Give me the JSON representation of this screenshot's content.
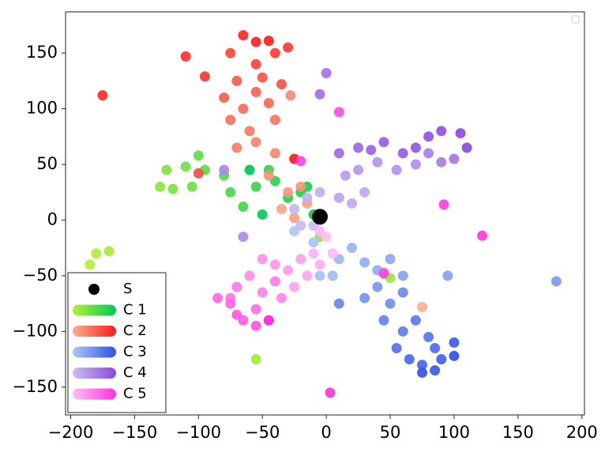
{
  "chart_data": {
    "type": "scatter",
    "xlim": [
      -204,
      202
    ],
    "ylim": [
      -175,
      187
    ],
    "xticks": [
      {
        "value": -200,
        "label": "−200"
      },
      {
        "value": -150,
        "label": "−150"
      },
      {
        "value": -100,
        "label": "−100"
      },
      {
        "value": -50,
        "label": "−50"
      },
      0,
      50,
      100,
      150,
      200
    ],
    "yticks": [
      {
        "value": -150,
        "label": "−150"
      },
      {
        "value": -100,
        "label": "−100"
      },
      {
        "value": -50,
        "label": "−50"
      },
      0,
      50,
      100,
      150
    ],
    "grid": false,
    "legend": "lower left",
    "series": [
      {
        "name": "S",
        "color": "#000000",
        "x": [
          -5
        ],
        "y": [
          3
        ]
      },
      {
        "name": "C 1",
        "colors": [
          "#b5f03a",
          "#00c853"
        ],
        "x": [
          -185,
          -180,
          -170,
          -55,
          50,
          -5,
          -130,
          -125,
          -120,
          -110,
          -105,
          -100,
          -95,
          -80,
          -75,
          -65,
          -55,
          -45,
          -40,
          -30,
          -20,
          -15,
          -10,
          -50,
          -60
        ],
        "y": [
          -40,
          -30,
          -28,
          -125,
          -52,
          -15,
          30,
          45,
          28,
          48,
          30,
          58,
          45,
          40,
          25,
          12,
          30,
          45,
          35,
          20,
          25,
          30,
          5,
          5,
          45
        ]
      },
      {
        "name": "C 2",
        "colors": [
          "#f7b08f",
          "#ff1a1a"
        ],
        "x": [
          75,
          45,
          -35,
          -15,
          -25,
          -30,
          -20,
          -45,
          -28,
          -40,
          -55,
          -70,
          -60,
          -40,
          -75,
          -65,
          -45,
          -55,
          -80,
          -70,
          -50,
          -35,
          -100,
          -75,
          -55,
          -40,
          -30,
          -95,
          -110,
          -175,
          -65,
          -55,
          -45,
          -25
        ],
        "y": [
          -78,
          -47,
          10,
          15,
          2,
          25,
          30,
          40,
          112,
          60,
          70,
          65,
          80,
          90,
          90,
          100,
          105,
          115,
          110,
          125,
          128,
          122,
          42,
          150,
          140,
          150,
          155,
          129,
          147,
          112,
          166,
          160,
          161,
          55
        ]
      },
      {
        "name": "C 3",
        "colors": [
          "#aec8f5",
          "#3050e8"
        ],
        "x": [
          -25,
          -10,
          -5,
          5,
          10,
          20,
          30,
          40,
          50,
          60,
          95,
          180,
          40,
          30,
          50,
          60,
          10,
          45,
          60,
          70,
          80,
          55,
          85,
          65,
          75,
          90,
          100,
          85,
          75,
          100
        ],
        "y": [
          -10,
          -20,
          -50,
          -50,
          -35,
          -25,
          -38,
          -45,
          -35,
          -50,
          -50,
          -55,
          -60,
          -70,
          -75,
          -65,
          -75,
          -90,
          -100,
          -90,
          -105,
          -115,
          -115,
          -125,
          -130,
          -125,
          -110,
          -135,
          -137,
          -122
        ]
      },
      {
        "name": "C 4",
        "colors": [
          "#cdbdf2",
          "#8a48e0"
        ],
        "x": [
          -10,
          -20,
          -25,
          -15,
          -5,
          20,
          30,
          10,
          15,
          25,
          40,
          55,
          70,
          -65,
          -80,
          80,
          90,
          100,
          0,
          -5,
          10,
          25,
          35,
          45,
          60,
          70,
          80,
          90,
          105,
          110
        ],
        "y": [
          -5,
          -5,
          10,
          20,
          25,
          15,
          25,
          20,
          40,
          45,
          52,
          45,
          50,
          -15,
          45,
          60,
          52,
          55,
          132,
          113,
          60,
          65,
          63,
          70,
          60,
          65,
          75,
          80,
          78,
          65
        ]
      },
      {
        "name": "C 5",
        "colors": [
          "#ffc0f5",
          "#ff30dc"
        ],
        "x": [
          0,
          5,
          -5,
          -10,
          -5,
          -15,
          -25,
          -20,
          -30,
          -40,
          -50,
          -60,
          -35,
          -50,
          -40,
          -70,
          -75,
          -55,
          -85,
          -75,
          -65,
          -70,
          -55,
          -45,
          10,
          -20,
          45,
          92,
          122,
          3,
          -45
        ],
        "y": [
          -15,
          -30,
          -10,
          -30,
          -40,
          -50,
          -60,
          -35,
          -45,
          -40,
          -35,
          -50,
          -70,
          -65,
          -55,
          -60,
          -70,
          -80,
          -70,
          -75,
          -90,
          -85,
          -95,
          -90,
          97,
          53,
          -48,
          14,
          -14,
          -155,
          -90
        ]
      }
    ]
  }
}
